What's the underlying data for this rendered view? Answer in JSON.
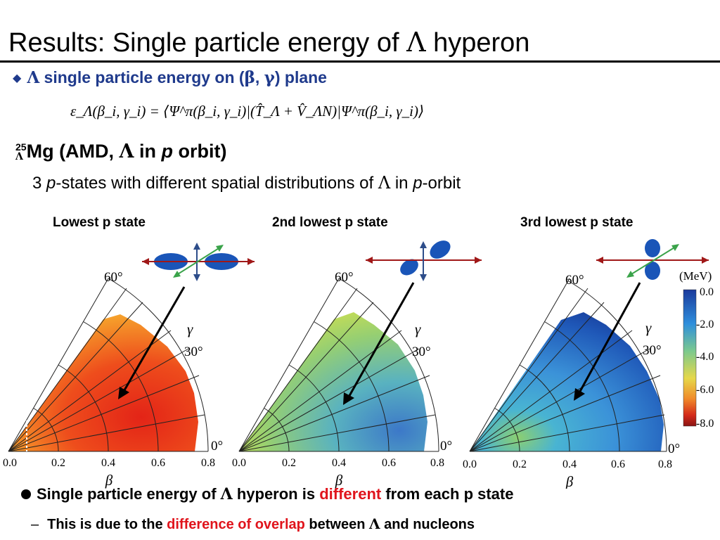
{
  "title": {
    "main": "Results",
    "colon": ":",
    "rest": " Single particle energy of ",
    "greek": "Λ",
    "tail": " hyperon"
  },
  "subtitle": {
    "bullet": "◆",
    "greek1": "Λ",
    "text1": " single particle energy on (",
    "beta": "β",
    "comma": ", ",
    "gamma": "γ",
    "text2": ") plane"
  },
  "formula": "ε_Λ(β_i, γ_i) = ⟨Ψ^π(β_i, γ_i)|(T̂_Λ + V̂_ΛN)|Ψ^π(β_i, γ_i)⟩",
  "nucleus": {
    "mass": "25",
    "sub": "Λ",
    "element": "Mg (AMD, ",
    "greek": "Λ",
    "in": " in ",
    "p": "p",
    "orbit": " orbit)"
  },
  "description": {
    "pre": "3 ",
    "p": "p",
    "mid": "-states with different spatial distributions of ",
    "greek": "Λ",
    "in": " in ",
    "p2": "p",
    "end": "-orbit"
  },
  "panels": [
    {
      "label": "Lowest p state",
      "theme": "low"
    },
    {
      "label": "2nd lowest p state",
      "theme": "mid"
    },
    {
      "label": "3rd lowest p state",
      "theme": "high"
    }
  ],
  "axis": {
    "beta_ticks": [
      "0.0",
      "0.2",
      "0.4",
      "0.6",
      "0.8"
    ],
    "beta_label": "β",
    "gamma_label": "γ",
    "angle_60": "60°",
    "angle_30": "30°",
    "angle_0": "0°"
  },
  "colorbar": {
    "unit": "(MeV)",
    "ticks": [
      "0.0",
      "-2.0",
      "-4.0",
      "-6.0",
      "-8.0"
    ]
  },
  "bullets": {
    "b1": {
      "marker": "●",
      "pre": "Single particle energy of ",
      "greek": "Λ",
      "mid": " hyperon is ",
      "red": "different",
      "post": " from each p state"
    },
    "b2": {
      "marker": "–",
      "pre": "This is due to the ",
      "red": "difference of overlap",
      "mid": " between ",
      "greek": "Λ",
      "post": " and nucleons"
    }
  },
  "colors": {
    "title_blue": "#1f3a8c",
    "highlight_red": "#e0141c",
    "arrow_red": "#a01818",
    "arrow_blue": "#2d4d8a",
    "arrow_green": "#3aa34a",
    "density_blue": "#1a55b8"
  }
}
